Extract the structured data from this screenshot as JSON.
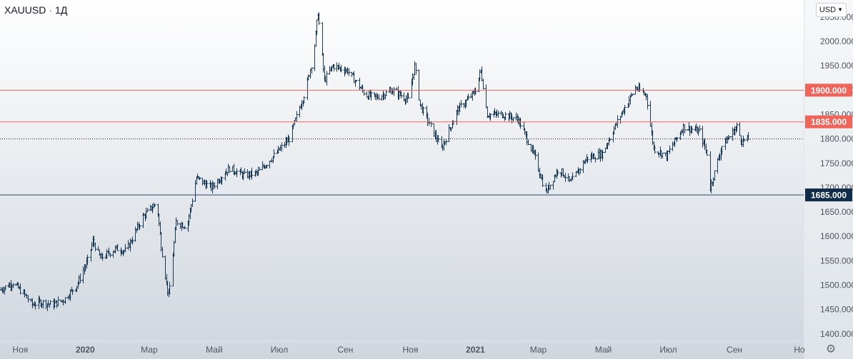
{
  "header": {
    "symbol": "XAUUSD",
    "interval": "1Д"
  },
  "currency_selector": {
    "label": "USD"
  },
  "icons": {
    "settings": "gear-icon",
    "currency_dropdown": "chevron-down-icon"
  },
  "colors": {
    "candle": "#1b3a57",
    "resistance_line": "#f0645a",
    "support_line": "#2a4a68",
    "badge_red": "#f0645a",
    "badge_navy": "#0f2d4a",
    "axis_text": "#50535e",
    "price_line": "#131722"
  },
  "chart_data": {
    "type": "candlestick",
    "symbol": "XAUUSD",
    "timeframe": "1Д",
    "ylim": [
      1385,
      2085
    ],
    "y_ticks": [
      1400,
      1450,
      1500,
      1550,
      1600,
      1650,
      1700,
      1750,
      1800,
      1850,
      1900,
      1950,
      2000,
      2050
    ],
    "y_tick_labels": [
      "1400.000",
      "1450.000",
      "1500.000",
      "1550.000",
      "1600.000",
      "1650.000",
      "1700.000",
      "1750.000",
      "1800.000",
      "1850.000",
      "1900.000",
      "1950.000",
      "2000.000",
      "2050.000"
    ],
    "xlim": [
      "2019-10-13",
      "2021-11-05"
    ],
    "x_ticks": [
      {
        "date": "2019-11-01",
        "label": "Ноя"
      },
      {
        "date": "2020-01-01",
        "label": "2020"
      },
      {
        "date": "2020-03-01",
        "label": "Мар"
      },
      {
        "date": "2020-05-01",
        "label": "Май"
      },
      {
        "date": "2020-07-01",
        "label": "Июл"
      },
      {
        "date": "2020-09-01",
        "label": "Сен"
      },
      {
        "date": "2020-11-01",
        "label": "Ноя"
      },
      {
        "date": "2021-01-01",
        "label": "2021"
      },
      {
        "date": "2021-03-01",
        "label": "Мар"
      },
      {
        "date": "2021-05-01",
        "label": "Май"
      },
      {
        "date": "2021-07-01",
        "label": "Июл"
      },
      {
        "date": "2021-09-01",
        "label": "Сен"
      },
      {
        "date": "2021-11-01",
        "label": "Но"
      }
    ],
    "series_anchors": [
      [
        "2019-10-13",
        1490
      ],
      [
        "2019-10-25",
        1505
      ],
      [
        "2019-11-05",
        1480
      ],
      [
        "2019-11-12",
        1460
      ],
      [
        "2019-11-20",
        1465
      ],
      [
        "2019-12-01",
        1460
      ],
      [
        "2019-12-12",
        1470
      ],
      [
        "2019-12-24",
        1500
      ],
      [
        "2020-01-03",
        1550
      ],
      [
        "2020-01-08",
        1590
      ],
      [
        "2020-01-15",
        1555
      ],
      [
        "2020-01-30",
        1575
      ],
      [
        "2020-02-08",
        1570
      ],
      [
        "2020-02-24",
        1640
      ],
      [
        "2020-03-08",
        1670
      ],
      [
        "2020-03-12",
        1580
      ],
      [
        "2020-03-19",
        1475
      ],
      [
        "2020-03-26",
        1630
      ],
      [
        "2020-04-05",
        1620
      ],
      [
        "2020-04-14",
        1720
      ],
      [
        "2020-04-28",
        1700
      ],
      [
        "2020-05-15",
        1740
      ],
      [
        "2020-05-29",
        1725
      ],
      [
        "2020-06-10",
        1730
      ],
      [
        "2020-06-28",
        1770
      ],
      [
        "2020-07-10",
        1800
      ],
      [
        "2020-07-24",
        1890
      ],
      [
        "2020-08-02",
        1970
      ],
      [
        "2020-08-06",
        2060
      ],
      [
        "2020-08-12",
        1920
      ],
      [
        "2020-08-20",
        1950
      ],
      [
        "2020-09-03",
        1940
      ],
      [
        "2020-09-20",
        1890
      ],
      [
        "2020-09-30",
        1885
      ],
      [
        "2020-10-15",
        1900
      ],
      [
        "2020-10-30",
        1880
      ],
      [
        "2020-11-05",
        1950
      ],
      [
        "2020-11-10",
        1870
      ],
      [
        "2020-11-30",
        1780
      ],
      [
        "2020-12-15",
        1860
      ],
      [
        "2020-12-31",
        1895
      ],
      [
        "2021-01-06",
        1940
      ],
      [
        "2021-01-12",
        1850
      ],
      [
        "2021-01-27",
        1850
      ],
      [
        "2021-02-10",
        1840
      ],
      [
        "2021-02-26",
        1760
      ],
      [
        "2021-03-08",
        1690
      ],
      [
        "2021-03-20",
        1740
      ],
      [
        "2021-03-31",
        1710
      ],
      [
        "2021-04-15",
        1760
      ],
      [
        "2021-04-30",
        1770
      ],
      [
        "2021-05-15",
        1840
      ],
      [
        "2021-05-31",
        1905
      ],
      [
        "2021-06-10",
        1890
      ],
      [
        "2021-06-17",
        1780
      ],
      [
        "2021-06-29",
        1765
      ],
      [
        "2021-07-15",
        1825
      ],
      [
        "2021-07-30",
        1815
      ],
      [
        "2021-08-06",
        1770
      ],
      [
        "2021-08-09",
        1700
      ],
      [
        "2021-08-20",
        1785
      ],
      [
        "2021-09-03",
        1825
      ],
      [
        "2021-09-08",
        1795
      ],
      [
        "2021-09-14",
        1800
      ]
    ],
    "last_price": 1800,
    "horizontal_levels": [
      {
        "price": 1900,
        "label": "1900.000",
        "role": "resistance"
      },
      {
        "price": 1835,
        "label": "1835.000",
        "role": "resistance"
      },
      {
        "price": 1685,
        "label": "1685.000",
        "role": "support"
      }
    ],
    "grid": false
  }
}
